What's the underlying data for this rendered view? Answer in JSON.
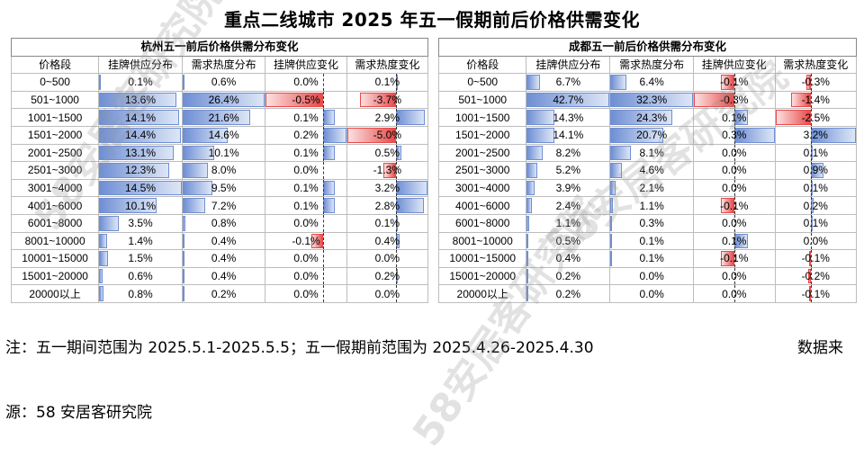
{
  "title": "重点二线城市 2025 年五一假期前后价格供需变化",
  "watermark": "58安居客研究院",
  "notes": {
    "period": "注：五一期间范围为 2025.5.1-2025.5.5；五一假期前范围为 2025.4.26-2025.4.30",
    "source_a": "数据来",
    "source_b": "源：58 安居客研究院"
  },
  "colors": {
    "positive_bar": "#6f8fd4",
    "negative_bar": "#e84a4a",
    "border": "#bdbdbd"
  },
  "chart_data": [
    {
      "type": "table",
      "title": "杭州五一前后价格供需分布变化",
      "columns": [
        "价格段",
        "挂牌供应分布",
        "需求热度分布",
        "挂牌供应变化",
        "需求热度变化"
      ],
      "rows": [
        [
          "0~500",
          "0.1%",
          "0.6%",
          "0.0%",
          "0.1%"
        ],
        [
          "501~1000",
          "13.6%",
          "26.4%",
          "-0.5%",
          "-3.7%"
        ],
        [
          "1001~1500",
          "14.1%",
          "21.6%",
          "0.1%",
          "2.9%"
        ],
        [
          "1501~2000",
          "14.4%",
          "14.6%",
          "0.2%",
          "-5.0%"
        ],
        [
          "2001~2500",
          "13.1%",
          "10.1%",
          "0.1%",
          "0.5%"
        ],
        [
          "2501~3000",
          "12.3%",
          "8.0%",
          "0.0%",
          "-1.3%"
        ],
        [
          "3001~4000",
          "14.5%",
          "9.5%",
          "0.1%",
          "3.2%"
        ],
        [
          "4001~6000",
          "10.1%",
          "7.2%",
          "0.1%",
          "2.8%"
        ],
        [
          "6001~8000",
          "3.5%",
          "0.8%",
          "0.0%",
          "0.1%"
        ],
        [
          "8001~10000",
          "1.4%",
          "0.4%",
          "-0.1%",
          "0.4%"
        ],
        [
          "10001~15000",
          "1.5%",
          "0.4%",
          "0.0%",
          "0.0%"
        ],
        [
          "15001~20000",
          "0.6%",
          "0.4%",
          "0.0%",
          "0.2%"
        ],
        [
          "20000以上",
          "0.8%",
          "0.2%",
          "0.0%",
          "0.0%"
        ]
      ]
    },
    {
      "type": "table",
      "title": "成都五一前后价格供需分布变化",
      "columns": [
        "价格段",
        "挂牌供应分布",
        "需求热度分布",
        "挂牌供应变化",
        "需求热度变化"
      ],
      "rows": [
        [
          "0~500",
          "6.7%",
          "6.4%",
          "-0.1%",
          "-0.3%"
        ],
        [
          "501~1000",
          "42.7%",
          "32.3%",
          "-0.3%",
          "-1.4%"
        ],
        [
          "1001~1500",
          "14.3%",
          "24.3%",
          "0.1%",
          "-2.5%"
        ],
        [
          "1501~2000",
          "14.1%",
          "20.7%",
          "0.3%",
          "3.2%"
        ],
        [
          "2001~2500",
          "8.2%",
          "8.1%",
          "0.0%",
          "0.1%"
        ],
        [
          "2501~3000",
          "5.2%",
          "4.6%",
          "0.0%",
          "0.9%"
        ],
        [
          "3001~4000",
          "3.9%",
          "2.1%",
          "0.0%",
          "0.1%"
        ],
        [
          "4001~6000",
          "2.4%",
          "1.1%",
          "-0.1%",
          "0.2%"
        ],
        [
          "6001~8000",
          "1.1%",
          "0.3%",
          "0.0%",
          "0.1%"
        ],
        [
          "8001~10000",
          "0.5%",
          "0.1%",
          "0.1%",
          "0.0%"
        ],
        [
          "10001~15000",
          "0.4%",
          "0.1%",
          "-0.1%",
          "-0.1%"
        ],
        [
          "15001~20000",
          "0.2%",
          "0.0%",
          "0.0%",
          "-0.2%"
        ],
        [
          "20000以上",
          "0.2%",
          "0.0%",
          "0.0%",
          "-0.1%"
        ]
      ]
    }
  ]
}
